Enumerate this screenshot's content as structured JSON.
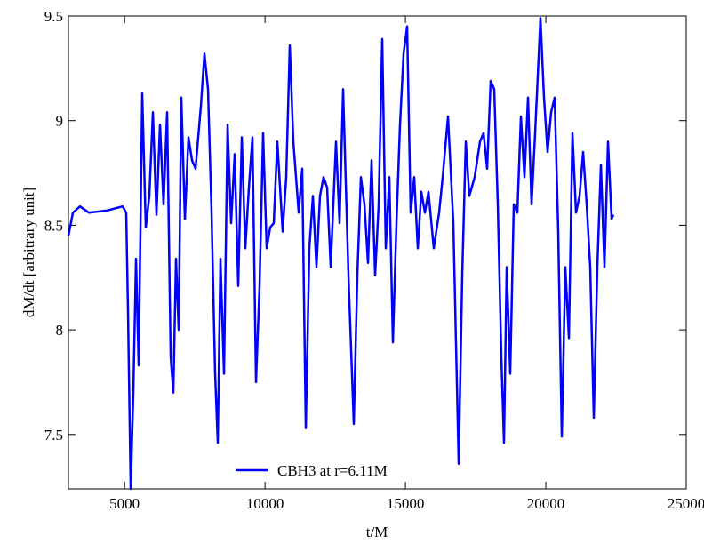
{
  "chart_data": {
    "type": "line",
    "x_label": "t/M",
    "y_label": "dM/dt [arbitrary unit]",
    "x": [
      3000,
      3158,
      3411,
      3728,
      4361,
      4931,
      5057,
      5120,
      5215,
      5310,
      5405,
      5500,
      5627,
      5753,
      5880,
      6006,
      6133,
      6260,
      6386,
      6513,
      6639,
      6734,
      6830,
      6925,
      7020,
      7146,
      7273,
      7400,
      7526,
      7716,
      7843,
      7970,
      8096,
      8223,
      8318,
      8413,
      8539,
      8666,
      8793,
      8919,
      9046,
      9172,
      9299,
      9426,
      9552,
      9679,
      9806,
      9932,
      10058,
      10185,
      10312,
      10438,
      10628,
      10755,
      10881,
      11008,
      11198,
      11325,
      11451,
      11578,
      11704,
      11831,
      11958,
      12084,
      12211,
      12338,
      12528,
      12654,
      12781,
      12971,
      13161,
      13288,
      13414,
      13541,
      13668,
      13794,
      13921,
      14048,
      14174,
      14301,
      14428,
      14554,
      14681,
      14808,
      14934,
      15061,
      15187,
      15314,
      15440,
      15567,
      15694,
      15820,
      16010,
      16200,
      16326,
      16516,
      16706,
      16896,
      17023,
      17149,
      17276,
      17466,
      17655,
      17782,
      17909,
      18035,
      18162,
      18289,
      18415,
      18510,
      18605,
      18732,
      18858,
      18985,
      19112,
      19238,
      19365,
      19491,
      19618,
      19808,
      19934,
      20061,
      20188,
      20314,
      20441,
      20567,
      20694,
      20821,
      20947,
      21074,
      21201,
      21327,
      21454,
      21581,
      21707,
      21834,
      21960,
      22087,
      22214,
      22340,
      22404
    ],
    "series": [
      {
        "name": "CBH3 at r=6.11M",
        "color": "#0000ff",
        "values": [
          8.45,
          8.56,
          8.59,
          8.56,
          8.57,
          8.59,
          8.56,
          8.09,
          7.24,
          7.7,
          8.34,
          7.83,
          9.13,
          8.49,
          8.64,
          9.04,
          8.55,
          8.98,
          8.6,
          9.04,
          7.87,
          7.7,
          8.34,
          8.0,
          9.11,
          8.53,
          8.92,
          8.81,
          8.77,
          9.07,
          9.32,
          9.15,
          8.56,
          7.79,
          7.46,
          8.34,
          7.79,
          8.98,
          8.51,
          8.84,
          8.21,
          8.92,
          8.39,
          8.68,
          8.92,
          7.75,
          8.21,
          8.94,
          8.39,
          8.49,
          8.51,
          8.9,
          8.47,
          8.73,
          9.36,
          8.9,
          8.56,
          8.77,
          7.53,
          8.39,
          8.64,
          8.3,
          8.64,
          8.73,
          8.68,
          8.3,
          8.9,
          8.51,
          9.15,
          8.26,
          7.55,
          8.26,
          8.73,
          8.6,
          8.32,
          8.81,
          8.26,
          8.6,
          9.39,
          8.39,
          8.73,
          7.94,
          8.51,
          8.98,
          9.32,
          9.45,
          8.56,
          8.73,
          8.39,
          8.66,
          8.56,
          8.66,
          8.39,
          8.56,
          8.73,
          9.02,
          8.51,
          7.36,
          8.26,
          8.9,
          8.64,
          8.73,
          8.9,
          8.94,
          8.77,
          9.19,
          9.15,
          8.6,
          7.87,
          7.46,
          8.3,
          7.79,
          8.6,
          8.56,
          9.02,
          8.73,
          9.11,
          8.6,
          8.94,
          9.49,
          9.11,
          8.85,
          9.04,
          9.11,
          8.47,
          7.49,
          8.3,
          7.96,
          8.94,
          8.56,
          8.64,
          8.85,
          8.6,
          8.3,
          7.58,
          8.3,
          8.79,
          8.3,
          8.9,
          8.53,
          8.55
        ]
      }
    ],
    "xlim": [
      3000,
      25000
    ],
    "xticks": [
      5000,
      10000,
      15000,
      20000,
      25000
    ],
    "ylim": [
      7.24,
      9.5
    ],
    "yticks": [
      7.5,
      8,
      8.5,
      9,
      9.5
    ]
  }
}
